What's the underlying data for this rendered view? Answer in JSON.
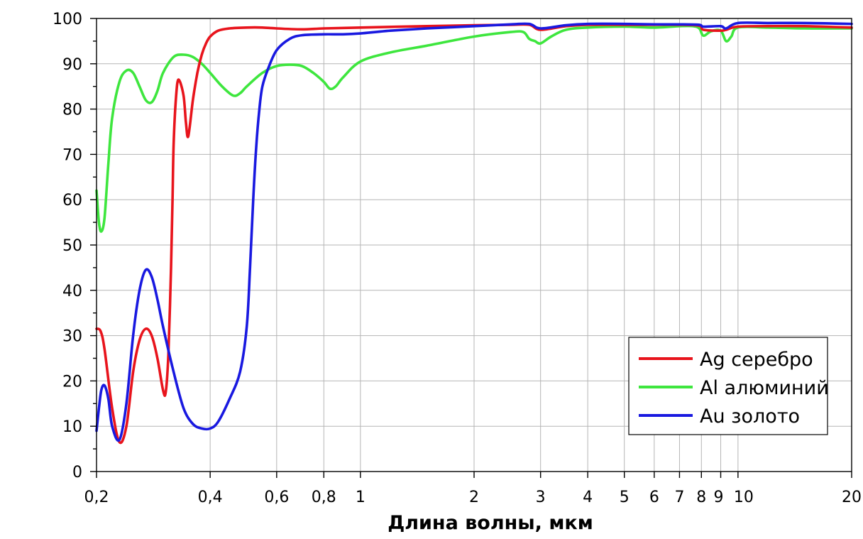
{
  "chart_data": {
    "type": "line",
    "title": "",
    "xlabel": "Длина волны, мкм",
    "ylabel": "",
    "x_scale": "log",
    "xlim": [
      0.2,
      20
    ],
    "ylim": [
      0,
      100
    ],
    "grid": true,
    "legend_position": "bottom-right",
    "x_ticks": [
      {
        "value": 0.2,
        "label": "0,2"
      },
      {
        "value": 0.4,
        "label": "0,4"
      },
      {
        "value": 0.6,
        "label": "0,6"
      },
      {
        "value": 0.8,
        "label": "0,8"
      },
      {
        "value": 1,
        "label": "1"
      },
      {
        "value": 2,
        "label": "2"
      },
      {
        "value": 3,
        "label": "3"
      },
      {
        "value": 4,
        "label": "4"
      },
      {
        "value": 5,
        "label": "5"
      },
      {
        "value": 6,
        "label": "6"
      },
      {
        "value": 7,
        "label": "7"
      },
      {
        "value": 8,
        "label": "8"
      },
      {
        "value": 9,
        "label": "9"
      },
      {
        "value": 10,
        "label": "10"
      },
      {
        "value": 20,
        "label": "20"
      }
    ],
    "y_ticks": [
      0,
      10,
      20,
      30,
      40,
      50,
      60,
      70,
      80,
      90,
      100
    ],
    "series": [
      {
        "name": "Ag серебро",
        "color": "#e8141c",
        "x": [
          0.2,
          0.205,
          0.21,
          0.22,
          0.23,
          0.24,
          0.25,
          0.26,
          0.27,
          0.28,
          0.29,
          0.3,
          0.305,
          0.31,
          0.315,
          0.318,
          0.32,
          0.325,
          0.33,
          0.34,
          0.345,
          0.35,
          0.36,
          0.37,
          0.38,
          0.39,
          0.4,
          0.42,
          0.45,
          0.5,
          0.55,
          0.6,
          0.7,
          0.8,
          1,
          1.5,
          2,
          2.5,
          2.8,
          3,
          3.5,
          4,
          5,
          6,
          7,
          7.9,
          8.1,
          9,
          9.3,
          10,
          12,
          15,
          20
        ],
        "y": [
          31.5,
          31,
          27,
          14,
          6.5,
          10,
          22,
          29,
          31.5,
          30,
          25,
          18,
          17.5,
          26,
          45,
          60,
          72,
          83,
          86.5,
          83,
          77,
          74,
          82,
          88,
          92,
          94.5,
          96,
          97.3,
          97.8,
          98,
          98,
          97.8,
          97.6,
          97.8,
          98,
          98.3,
          98.5,
          98.6,
          98.6,
          97.5,
          98.3,
          98.6,
          98.6,
          98.6,
          98.6,
          98.4,
          97.5,
          97.3,
          97.5,
          98.2,
          98.3,
          98.3,
          98
        ]
      },
      {
        "name": "Al алюминий",
        "color": "#3ee63e",
        "x": [
          0.2,
          0.203,
          0.206,
          0.21,
          0.215,
          0.22,
          0.23,
          0.24,
          0.25,
          0.26,
          0.27,
          0.28,
          0.29,
          0.3,
          0.32,
          0.34,
          0.36,
          0.38,
          0.4,
          0.43,
          0.46,
          0.48,
          0.5,
          0.55,
          0.6,
          0.65,
          0.7,
          0.75,
          0.8,
          0.83,
          0.86,
          0.9,
          1,
          1.2,
          1.5,
          2,
          2.5,
          2.7,
          2.8,
          2.9,
          3,
          3.2,
          3.5,
          4,
          5,
          6,
          7,
          7.6,
          7.9,
          8.1,
          8.5,
          9,
          9.3,
          9.6,
          10,
          12,
          15,
          20
        ],
        "y": [
          62,
          55,
          53,
          56,
          68,
          78,
          86,
          88.5,
          88,
          85,
          82,
          81.5,
          84,
          88,
          91.5,
          92,
          91.5,
          90,
          88,
          85,
          83,
          83.5,
          85,
          88,
          89.5,
          89.8,
          89.5,
          88,
          86,
          84.5,
          85,
          87,
          90.5,
          92.5,
          94,
          96,
          97,
          97,
          95.5,
          95,
          94.5,
          96,
          97.5,
          98,
          98.2,
          98,
          98.3,
          98.3,
          97.8,
          96.2,
          97.2,
          97.3,
          95,
          96,
          98,
          98,
          97.8,
          97.8
        ]
      },
      {
        "name": "Au золото",
        "color": "#1919e0",
        "x": [
          0.2,
          0.203,
          0.206,
          0.21,
          0.215,
          0.22,
          0.23,
          0.24,
          0.25,
          0.26,
          0.27,
          0.28,
          0.29,
          0.3,
          0.32,
          0.34,
          0.36,
          0.38,
          0.4,
          0.42,
          0.45,
          0.48,
          0.5,
          0.51,
          0.52,
          0.53,
          0.54,
          0.55,
          0.57,
          0.6,
          0.65,
          0.7,
          0.8,
          0.9,
          1,
          1.2,
          1.5,
          2,
          2.5,
          2.8,
          3,
          3.5,
          4,
          5,
          6,
          7,
          7.9,
          8.1,
          9,
          9.3,
          10,
          12,
          15,
          20
        ],
        "y": [
          9,
          14,
          18,
          19,
          16,
          10,
          7,
          15,
          30,
          40,
          44.5,
          43,
          38,
          32,
          22,
          14,
          10.5,
          9.5,
          9.5,
          11,
          16,
          22,
          32,
          45,
          60,
          72,
          80,
          85,
          89,
          93,
          95.5,
          96.3,
          96.5,
          96.5,
          96.7,
          97.3,
          97.8,
          98.3,
          98.7,
          98.8,
          97.8,
          98.5,
          98.8,
          98.8,
          98.7,
          98.7,
          98.6,
          98.2,
          98.3,
          97.8,
          99,
          99,
          99,
          98.8
        ]
      }
    ]
  }
}
